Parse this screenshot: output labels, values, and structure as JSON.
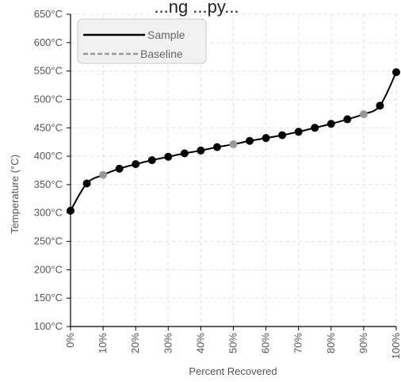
{
  "chart_data": {
    "type": "line",
    "title": "...ng ...py...",
    "xlabel": "Percent Recovered",
    "ylabel": "Temperature (°C)",
    "xlim": [
      0,
      100
    ],
    "ylim": [
      100,
      650
    ],
    "x_tick_labels": [
      "0%",
      "10%",
      "20%",
      "30%",
      "40%",
      "50%",
      "60%",
      "70%",
      "80%",
      "90%",
      "100%"
    ],
    "y_tick_labels": [
      "100°C",
      "150°C",
      "200°C",
      "250°C",
      "300°C",
      "350°C",
      "400°C",
      "450°C",
      "500°C",
      "550°C",
      "600°C",
      "650°C"
    ],
    "grid": true,
    "legend_position": "top-left",
    "series": [
      {
        "name": "Sample",
        "color": "#000000",
        "style": "solid",
        "x": [
          0,
          5,
          10,
          15,
          20,
          25,
          30,
          35,
          40,
          45,
          50,
          55,
          60,
          65,
          70,
          75,
          80,
          85,
          90,
          95,
          100
        ],
        "values": [
          304,
          352,
          367,
          378,
          386,
          393,
          399,
          405,
          410,
          416,
          421,
          427,
          432,
          437,
          443,
          450,
          457,
          465,
          474,
          489,
          548
        ]
      },
      {
        "name": "Baseline",
        "color": "#999999",
        "style": "dashed",
        "x": [
          10,
          50,
          90
        ],
        "values": [
          367,
          421,
          474
        ]
      }
    ]
  }
}
